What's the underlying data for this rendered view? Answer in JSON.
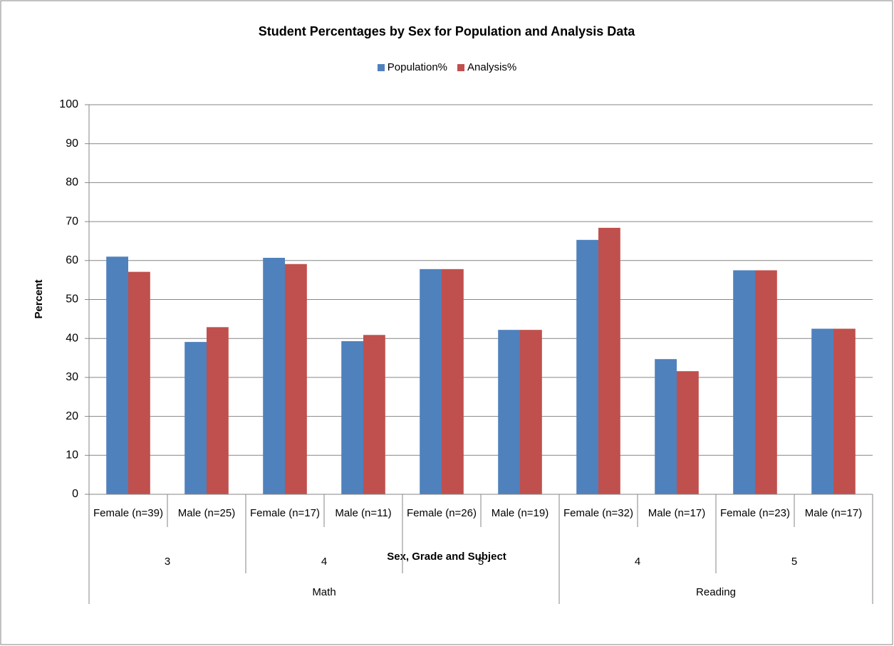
{
  "chart_data": {
    "type": "bar",
    "title": "Student Percentages by Sex for Population and Analysis Data",
    "x_label": "Sex, Grade and Subject",
    "y_label": "Percent",
    "groups": [
      {
        "name": "Math",
        "grades": [
          {
            "name": "3",
            "categories": [
              "Female (n=39)",
              "Male (n=25)"
            ]
          },
          {
            "name": "4",
            "categories": [
              "Female (n=17)",
              "Male (n=11)"
            ]
          },
          {
            "name": "5",
            "categories": [
              "Female (n=26)",
              "Male (n=19)"
            ]
          }
        ]
      },
      {
        "name": "Reading",
        "grades": [
          {
            "name": "4",
            "categories": [
              "Female (n=32)",
              "Male (n=17)"
            ]
          },
          {
            "name": "5",
            "categories": [
              "Female (n=23)",
              "Male (n=17)"
            ]
          }
        ]
      }
    ],
    "series": [
      {
        "name": "Population%",
        "color": "#4f81bd",
        "values": [
          61,
          39.1,
          60.7,
          39.3,
          57.8,
          42.2,
          65.3,
          34.7,
          57.5,
          42.5
        ]
      },
      {
        "name": "Analysis%",
        "color": "#c0504d",
        "values": [
          57.1,
          42.9,
          59.1,
          40.9,
          57.8,
          42.2,
          68.4,
          31.6,
          57.5,
          42.5
        ]
      }
    ],
    "ylim": [
      0,
      100
    ],
    "yticks": [
      0,
      10,
      20,
      30,
      40,
      50,
      60,
      70,
      80,
      90,
      100
    ],
    "grid": true,
    "legend": "top"
  }
}
